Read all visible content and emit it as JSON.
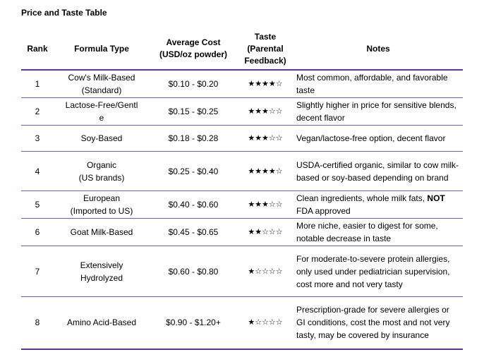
{
  "title": "Price and Taste Table",
  "headers": {
    "rank": "Rank",
    "type": "Formula Type",
    "cost": "Average Cost (USD/oz powder)",
    "taste": "Taste (Parental Feedback)",
    "notes": "Notes"
  },
  "rows": [
    {
      "rank": "1",
      "type_lines": [
        "Cow's Milk-Based",
        "(Standard)"
      ],
      "cost": "$0.10 - $0.20",
      "stars": 4,
      "notes": "Most common, affordable, and favorable taste"
    },
    {
      "rank": "2",
      "type_lines": [
        "Lactose-Free/Gentl",
        "e"
      ],
      "cost": "$0.15 - $0.25",
      "stars": 3,
      "notes": "Slightly higher in price for sensitive blends, decent flavor"
    },
    {
      "rank": "3",
      "type_lines": [
        "Soy-Based"
      ],
      "cost": "$0.18 - $0.28",
      "stars": 3,
      "notes": "Vegan/lactose-free option, decent flavor"
    },
    {
      "rank": "4",
      "type_lines": [
        "Organic",
        "(US brands)"
      ],
      "cost": "$0.25 - $0.40",
      "stars": 4,
      "notes": "USDA-certified organic, similar to cow milk-based or soy-based depending on brand"
    },
    {
      "rank": "5",
      "type_lines": [
        "European",
        "(Imported to US)"
      ],
      "cost": "$0.40 - $0.60",
      "stars": 3,
      "notes_pre": "Clean ingredients, whole milk fats, ",
      "notes_bold": "NOT",
      "notes_post": " FDA approved"
    },
    {
      "rank": "6",
      "type_lines": [
        "Goat Milk-Based"
      ],
      "cost": "$0.45 - $0.65",
      "stars": 2,
      "notes": "More niche, easier to digest for some, notable decrease in taste"
    },
    {
      "rank": "7",
      "type_lines": [
        "Extensively",
        "Hydrolyzed"
      ],
      "cost": "$0.60 - $0.80",
      "stars": 1,
      "notes": "For moderate-to-severe protein allergies, only used under pediatrician supervision, cost more and not very tasty"
    },
    {
      "rank": "8",
      "type_lines": [
        "Amino Acid-Based"
      ],
      "cost": "$0.90 - $1.20+",
      "stars": 1,
      "notes": "Prescription-grade for severe allergies or GI conditions, cost the most and not very tasty, may be covered by insurance"
    }
  ],
  "star_max": 5,
  "star_filled_glyph": "★",
  "star_empty_glyph": "☆"
}
